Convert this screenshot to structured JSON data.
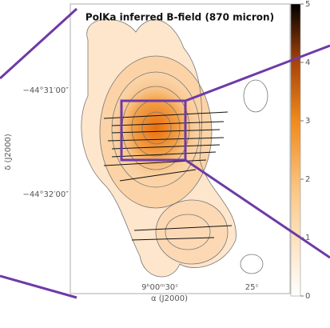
{
  "figure": {
    "title": "PolKa inferred B-field (870 micron)",
    "x_axis": {
      "label": "α (J2000)",
      "ticks": [
        "9ʰ00ᵐ30ˢ",
        "25ˢ"
      ]
    },
    "y_axis": {
      "label": "δ (J2000)",
      "ticks": [
        "−44°31′00″",
        "−44°32′00″"
      ]
    },
    "colorbar": {
      "lim": [
        0,
        5
      ],
      "ticks": [
        0,
        1,
        2,
        3,
        4,
        5
      ]
    }
  }
}
